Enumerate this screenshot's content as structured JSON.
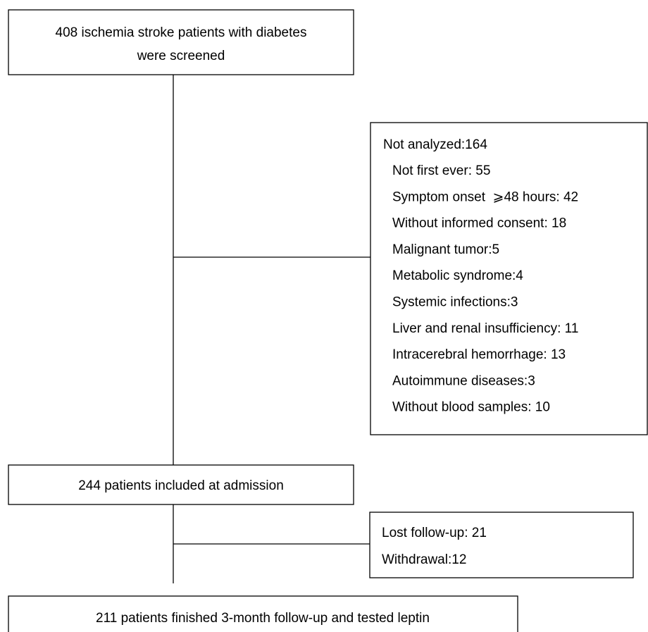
{
  "nodes": [
    {
      "lines": [
        "408 ischemia stroke patients with diabetes",
        "were screened"
      ]
    },
    {
      "title": "Not analyzed:164",
      "items": [
        "Not first ever: 55",
        "Symptom onset  ⩾48 hours: 42",
        "Without informed consent: 18",
        "Malignant tumor:5",
        "Metabolic syndrome:4",
        "Systemic infections:3",
        "Liver and renal insufficiency: 11",
        "Intracerebral hemorrhage: 13",
        "Autoimmune diseases:3",
        "Without blood samples: 10"
      ]
    },
    {
      "lines": [
        "244 patients included at admission"
      ]
    },
    {
      "items": [
        "Lost follow-up: 21",
        "Withdrawal:12"
      ]
    },
    {
      "lines": [
        "211 patients finished 3-month follow-up and tested leptin"
      ]
    }
  ]
}
